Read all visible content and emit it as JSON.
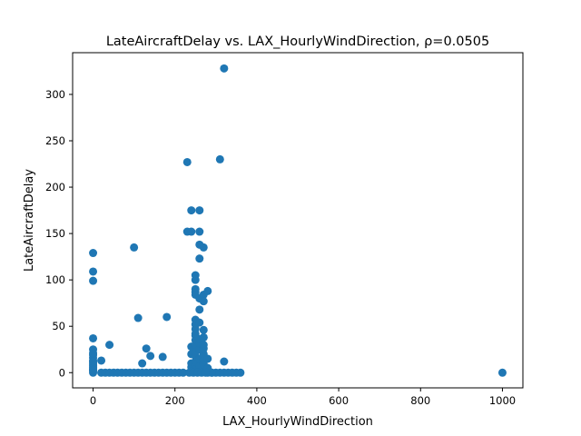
{
  "chart_data": {
    "type": "scatter",
    "title": "LateAircraftDelay vs. LAX_HourlyWindDirection, ρ=0.0505",
    "xlabel": "LAX_HourlyWindDirection",
    "ylabel": "LateAircraftDelay",
    "xlim": [
      -50,
      1050
    ],
    "ylim": [
      -16.4,
      345
    ],
    "xticks": [
      0,
      200,
      400,
      600,
      800,
      1000
    ],
    "yticks": [
      0,
      50,
      100,
      150,
      200,
      250,
      300
    ],
    "grid": false,
    "legend": "none",
    "marker_color": "#1f77b4",
    "x": [
      0,
      0,
      0,
      0,
      0,
      0,
      0,
      0,
      0,
      0,
      0,
      0,
      0,
      0,
      0,
      0,
      0,
      20,
      30,
      40,
      50,
      60,
      70,
      80,
      90,
      100,
      110,
      120,
      130,
      140,
      150,
      160,
      170,
      180,
      190,
      200,
      210,
      220,
      360,
      350,
      340,
      330,
      320,
      310,
      300,
      290,
      280,
      100,
      110,
      120,
      130,
      140,
      170,
      180,
      20,
      40,
      230,
      230,
      240,
      240,
      250,
      250,
      250,
      250,
      250,
      250,
      250,
      250,
      250,
      260,
      260,
      260,
      260,
      260,
      260,
      260,
      270,
      270,
      270,
      270,
      270,
      280,
      290,
      320,
      310,
      320,
      240,
      240,
      240,
      240,
      250,
      250,
      250,
      250,
      250,
      250,
      250,
      250,
      260,
      260,
      260,
      260,
      260,
      260,
      270,
      270,
      270,
      270,
      270,
      270,
      270,
      280,
      280,
      235,
      245,
      255,
      265,
      275,
      1000
    ],
    "y": [
      0,
      2,
      4,
      6,
      8,
      10,
      13,
      16,
      19,
      25,
      37,
      99,
      109,
      129,
      12,
      21,
      3,
      0,
      0,
      0,
      0,
      0,
      0,
      0,
      0,
      0,
      0,
      0,
      0,
      0,
      0,
      0,
      0,
      0,
      0,
      0,
      0,
      0,
      0,
      0,
      0,
      0,
      0,
      0,
      0,
      0,
      0,
      135,
      59,
      10,
      26,
      18,
      17,
      60,
      13,
      30,
      227,
      152,
      175,
      152,
      105,
      100,
      90,
      87,
      84,
      57,
      52,
      47,
      40,
      175,
      152,
      138,
      123,
      80,
      68,
      54,
      135,
      84,
      77,
      46,
      38,
      88,
      0,
      12,
      230,
      328,
      6,
      10,
      20,
      28,
      3,
      8,
      12,
      18,
      22,
      30,
      35,
      42,
      2,
      7,
      15,
      25,
      32,
      36,
      4,
      9,
      14,
      20,
      26,
      30,
      38,
      5,
      15,
      0,
      0,
      0,
      0,
      0,
      0
    ]
  }
}
